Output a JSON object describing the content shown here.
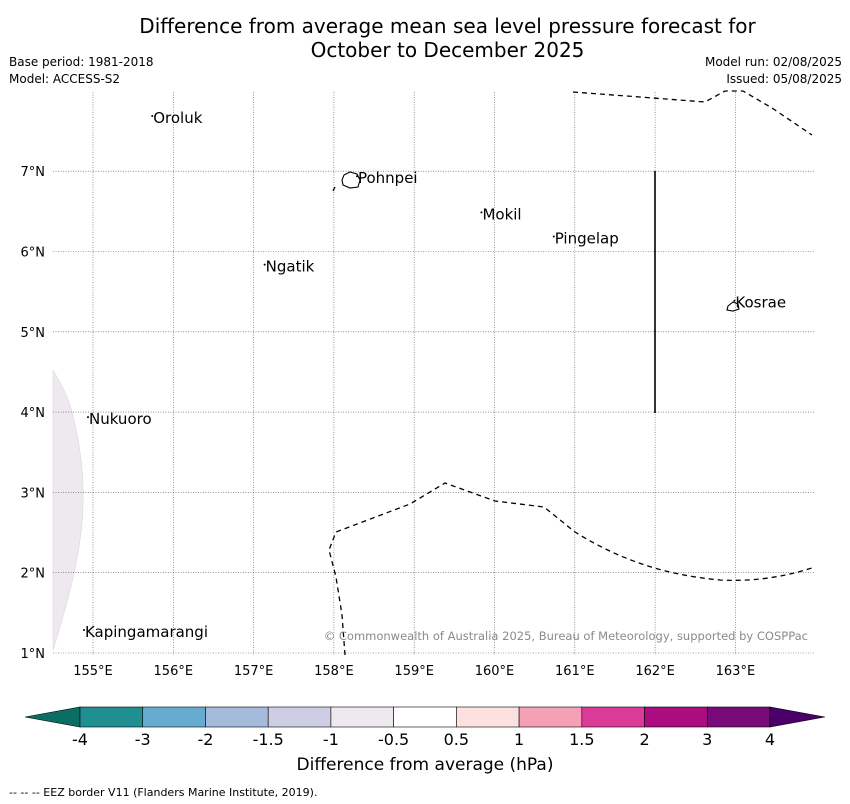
{
  "title": {
    "line1": "Difference from average mean sea level pressure forecast for",
    "line2": "October to December 2025"
  },
  "meta": {
    "base_period": "Base period: 1981-2018",
    "model": "Model: ACCESS-S2",
    "model_run": "Model run: 02/08/2025",
    "issued": "Issued: 05/08/2025"
  },
  "map": {
    "lon_ticks": [
      {
        "lon": 155,
        "label": "155°E"
      },
      {
        "lon": 156,
        "label": "156°E"
      },
      {
        "lon": 157,
        "label": "157°E"
      },
      {
        "lon": 158,
        "label": "158°E"
      },
      {
        "lon": 159,
        "label": "159°E"
      },
      {
        "lon": 160,
        "label": "160°E"
      },
      {
        "lon": 161,
        "label": "161°E"
      },
      {
        "lon": 162,
        "label": "162°E"
      },
      {
        "lon": 163,
        "label": "163°E"
      }
    ],
    "lat_ticks": [
      {
        "lat": 1,
        "label": "1°N"
      },
      {
        "lat": 2,
        "label": "2°N"
      },
      {
        "lat": 3,
        "label": "3°N"
      },
      {
        "lat": 4,
        "label": "4°N"
      },
      {
        "lat": 5,
        "label": "5°N"
      },
      {
        "lat": 6,
        "label": "6°N"
      },
      {
        "lat": 7,
        "label": "7°N"
      }
    ],
    "places": [
      {
        "name": "Oroluk",
        "lon": 155.75,
        "lat": 7.6
      },
      {
        "name": "Pohnpei",
        "lon": 158.3,
        "lat": 6.85
      },
      {
        "name": "Mokil",
        "lon": 159.85,
        "lat": 6.4
      },
      {
        "name": "Pingelap",
        "lon": 160.75,
        "lat": 6.1
      },
      {
        "name": "Ngatik",
        "lon": 157.15,
        "lat": 5.75
      },
      {
        "name": "Kosrae",
        "lon": 163.0,
        "lat": 5.3
      },
      {
        "name": "Nukuoro",
        "lon": 154.95,
        "lat": 3.85
      },
      {
        "name": "Kapingamarangi",
        "lon": 154.9,
        "lat": 1.2
      }
    ],
    "eez_border_style": "dashed",
    "copyright": "© Commonwealth of Australia 2025, Bureau of Meteorology, supported by COSPPac"
  },
  "colorbar": {
    "label": "Difference from average (hPa)",
    "ticks": [
      "-4",
      "-3",
      "-2",
      "-1.5",
      "-1",
      "-0.5",
      "0.5",
      "1",
      "1.5",
      "2",
      "3",
      "4"
    ],
    "colors": [
      "#1f8f91",
      "#66abd0",
      "#a6bbdc",
      "#cdcde4",
      "#ede9ee",
      "#ffffff",
      "#fde0e0",
      "#f6a0b8",
      "#dc3a98",
      "#ac0c80",
      "#7a0a7a"
    ],
    "under_color": "#0a6e64",
    "over_color": "#4a0068"
  },
  "footer": "--  --  -- EEZ border V11 (Flanders Marine Institute, 2019)."
}
